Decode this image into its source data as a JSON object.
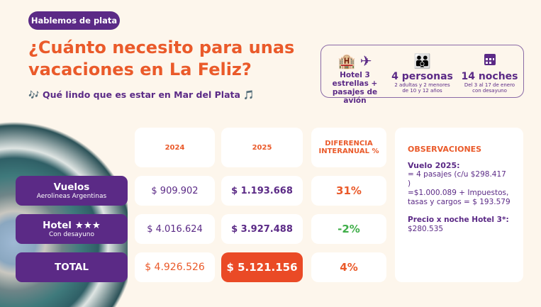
{
  "header": {
    "tag": "Hablemos de plata",
    "title_line1": "¿Cuánto necesito para unas",
    "title_line2": "vacaciones en La Feliz?",
    "subtitle": "Qué lindo que es estar en Mar del Plata",
    "note_icon": "🎶",
    "note_icon_end": "🎵"
  },
  "info": [
    {
      "icons": "hotel-icon plane-icon",
      "main": "Hotel 3 estrellas +",
      "main2": "pasajes de avión"
    },
    {
      "icons": "family-icon",
      "big": "4 personas",
      "small": "2 adultas y 2 menores",
      "small2": "de 10 y 12 años"
    },
    {
      "icons": "calendar-icon",
      "big": "14 noches",
      "small": "Del 3 al 17 de enero",
      "small2": "con desayuno"
    }
  ],
  "table": {
    "headers": [
      "2024",
      "2025",
      "DIFERENCIA INTERANUAL %"
    ],
    "rows": [
      {
        "label": "Vuelos",
        "sublabel": "Aerolineas Argentinas",
        "v2024": "$ 909.902",
        "v2025": "$ 1.193.668",
        "diff": "31%"
      },
      {
        "label": "Hotel ★★★",
        "sublabel": "Con desayuno",
        "v2024": "$ 4.016.624",
        "v2025": "$ 3.927.488",
        "diff": "-2%"
      },
      {
        "label": "TOTAL",
        "sublabel": "",
        "v2024": "$ 4.926.526",
        "v2025": "$ 5.121.156",
        "diff": "4%"
      }
    ]
  },
  "observaciones": {
    "title": "OBSERVACIONES",
    "vuelo_title": "Vuelo 2025:",
    "vuelo_l1": "= 4 pasajes (c/u $298.417 )",
    "vuelo_l2": "=$1.000.089 + Impuestos,",
    "vuelo_l3": "tasas y cargos = $ 193.579",
    "hotel_title": "Precio x noche Hotel 3*:",
    "hotel_value": "$280.535"
  },
  "colors": {
    "purple": "#5b2a86",
    "orange": "#ea5a2a",
    "green": "#3fae49",
    "background": "#fdf6ec"
  }
}
